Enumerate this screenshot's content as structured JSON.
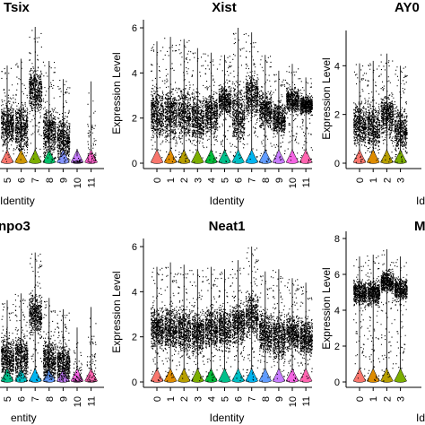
{
  "chart_data": [
    {
      "type": "violin",
      "title": "Tsix",
      "xlabel": "Identity",
      "ylabel": "",
      "categories": [
        "5",
        "6",
        "7",
        "8",
        "9",
        "10",
        "11"
      ],
      "ylim": [
        0,
        6
      ],
      "yticks": [],
      "max": [
        4.3,
        4.6,
        6.0,
        4.5,
        3.7,
        0.3,
        3.6
      ],
      "median": [
        1.7,
        1.6,
        3.2,
        1.4,
        1.1,
        0.0,
        0.0
      ],
      "colors": [
        "#f8766d",
        "#cd9600",
        "#7cae00",
        "#00be67",
        "#8494ff",
        "#c77cff",
        "#ff61cc"
      ]
    },
    {
      "type": "violin",
      "title": "Xist",
      "xlabel": "Identity",
      "ylabel": "Expression Level",
      "categories": [
        "0",
        "1",
        "2",
        "3",
        "4",
        "5",
        "6",
        "7",
        "8",
        "9",
        "10",
        "11"
      ],
      "ylim": [
        0,
        6.2
      ],
      "yticks": [
        "0",
        "2",
        "4",
        "6"
      ],
      "max": [
        5.4,
        5.6,
        5.5,
        5.1,
        4.9,
        4.8,
        6.0,
        5.8,
        4.8,
        4.1,
        4.4,
        3.8
      ],
      "median": [
        2.2,
        2.2,
        2.2,
        2.0,
        2.2,
        2.8,
        2.2,
        3.0,
        2.4,
        2.0,
        2.8,
        2.6
      ],
      "colors": [
        "#f8766d",
        "#de8c00",
        "#b79f00",
        "#7cae00",
        "#00ba38",
        "#00c08b",
        "#00bfc4",
        "#00b4f0",
        "#619cff",
        "#c77cff",
        "#f564e3",
        "#ff64b0"
      ]
    },
    {
      "type": "violin",
      "title": "AY0",
      "xlabel": "Id",
      "ylabel": "Expression Level",
      "categories": [
        "0",
        "1",
        "2",
        "3"
      ],
      "ylim": [
        0,
        5.3
      ],
      "yticks": [
        "0",
        "2",
        "4"
      ],
      "max": [
        4.1,
        4.2,
        4.5,
        4.0
      ],
      "median": [
        1.6,
        1.5,
        2.0,
        1.4
      ],
      "colors": [
        "#f8766d",
        "#de8c00",
        "#b79f00",
        "#7cae00"
      ]
    },
    {
      "type": "violin",
      "title": "npo3",
      "xlabel": "entity",
      "ylabel": "",
      "categories": [
        "5",
        "6",
        "7",
        "8",
        "9",
        "10",
        "11"
      ],
      "ylim": [
        0,
        6
      ],
      "yticks": [],
      "max": [
        3.6,
        3.9,
        5.7,
        3.7,
        3.2,
        2.4,
        3.3
      ],
      "median": [
        1.1,
        1.1,
        3.0,
        1.0,
        0.8,
        0.0,
        0.0
      ],
      "colors": [
        "#00c08b",
        "#00bfc4",
        "#00b4f0",
        "#619cff",
        "#c77cff",
        "#f564e3",
        "#ff64b0"
      ]
    },
    {
      "type": "violin",
      "title": "Neat1",
      "xlabel": "Identity",
      "ylabel": "Expression Level",
      "categories": [
        "0",
        "1",
        "2",
        "3",
        "4",
        "5",
        "6",
        "7",
        "8",
        "9",
        "10",
        "11"
      ],
      "ylim": [
        0,
        6.2
      ],
      "yticks": [
        "0",
        "2",
        "4",
        "6"
      ],
      "max": [
        5.1,
        5.3,
        5.2,
        5.0,
        5.1,
        5.0,
        5.4,
        6.0,
        4.9,
        5.0,
        4.6,
        4.4
      ],
      "median": [
        2.4,
        2.4,
        2.3,
        2.2,
        2.4,
        2.4,
        2.6,
        3.0,
        2.2,
        2.0,
        2.2,
        2.0
      ],
      "colors": [
        "#f8766d",
        "#de8c00",
        "#b79f00",
        "#7cae00",
        "#00ba38",
        "#00c08b",
        "#00bfc4",
        "#00b4f0",
        "#619cff",
        "#c77cff",
        "#f564e3",
        "#ff64b0"
      ]
    },
    {
      "type": "violin",
      "title": "M",
      "xlabel": "Id",
      "ylabel": "Expression Level",
      "categories": [
        "0",
        "1",
        "2",
        "3"
      ],
      "ylim": [
        0,
        8.2
      ],
      "yticks": [
        "0",
        "2",
        "4",
        "6",
        "8"
      ],
      "max": [
        7.0,
        7.1,
        7.4,
        7.0
      ],
      "median": [
        5.0,
        5.0,
        5.6,
        5.2
      ],
      "colors": [
        "#f8766d",
        "#de8c00",
        "#b79f00",
        "#7cae00"
      ]
    }
  ]
}
